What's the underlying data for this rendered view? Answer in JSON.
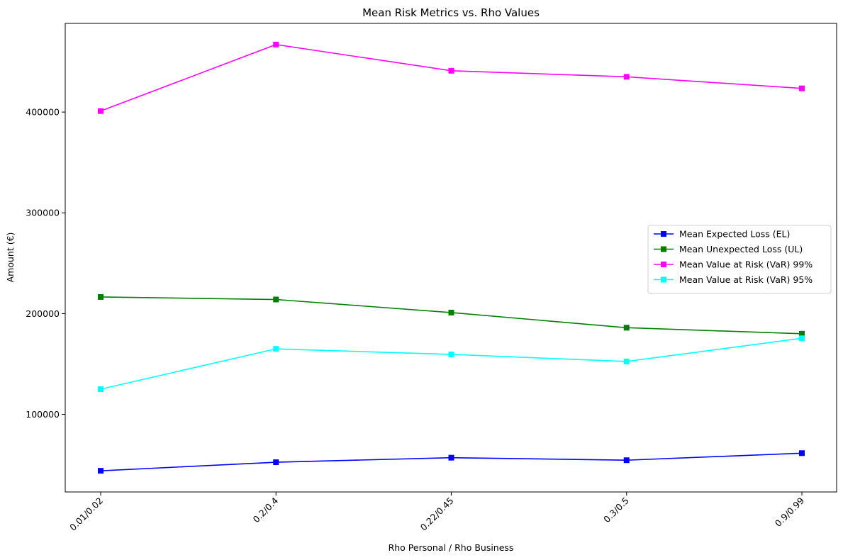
{
  "chart_data": {
    "type": "line",
    "title": "Mean Risk Metrics vs. Rho Values",
    "xlabel": "Rho Personal / Rho Business",
    "ylabel": "Amount (€)",
    "categories": [
      "0.01/0.02",
      "0.2/0.4",
      "0.22/0.45",
      "0.3/0.5",
      "0.9/0.99"
    ],
    "yticks": [
      100000,
      200000,
      300000,
      400000
    ],
    "ylim": [
      23000,
      488000
    ],
    "grid": false,
    "legend_position": "center-right",
    "series": [
      {
        "name": "Mean Expected Loss (EL)",
        "color": "#0000ff",
        "marker": "square",
        "values": [
          44000,
          52500,
          57000,
          54500,
          61500
        ]
      },
      {
        "name": "Mean Unexpected Loss (UL)",
        "color": "#008000",
        "marker": "square",
        "values": [
          216500,
          214000,
          201000,
          186000,
          180000
        ]
      },
      {
        "name": "Mean Value at Risk (VaR) 99%",
        "color": "#ff00ff",
        "marker": "square",
        "values": [
          401000,
          467000,
          441000,
          435000,
          423500
        ]
      },
      {
        "name": "Mean Value at Risk (VaR) 95%",
        "color": "#00ffff",
        "marker": "square",
        "values": [
          125000,
          165000,
          159500,
          152500,
          175500
        ]
      }
    ]
  }
}
